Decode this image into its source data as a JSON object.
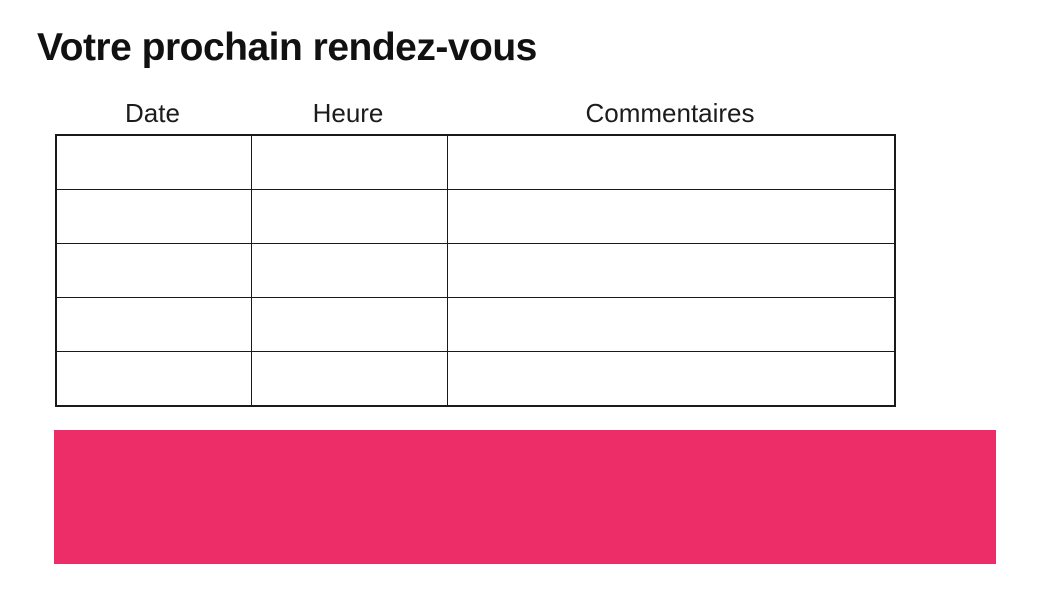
{
  "page": {
    "title": "Votre prochain rendez-vous"
  },
  "table": {
    "headers": [
      "Date",
      "Heure",
      "Commentaires"
    ],
    "rows": [
      [
        "",
        "",
        ""
      ],
      [
        "",
        "",
        ""
      ],
      [
        "",
        "",
        ""
      ],
      [
        "",
        "",
        ""
      ],
      [
        "",
        "",
        ""
      ]
    ]
  },
  "banner": {
    "label": ""
  },
  "colors": {
    "accent_pink": "#ED2D68",
    "table_border": "#1A1A1A",
    "text": "#111111"
  }
}
